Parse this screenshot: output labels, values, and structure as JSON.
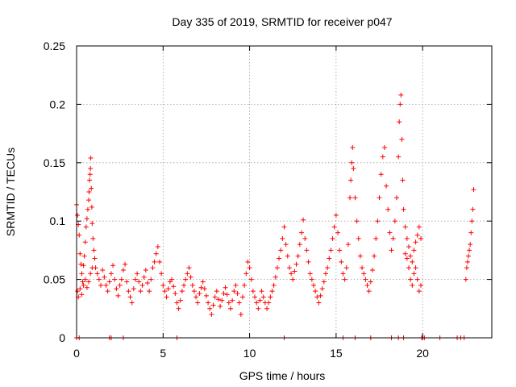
{
  "chart_data": {
    "type": "scatter",
    "title": "Day 335 of 2019, SRMTID for receiver p047",
    "xlabel": "GPS time / hours",
    "ylabel": "SRMTID / TECUs",
    "xlim": [
      0,
      24
    ],
    "ylim": [
      0,
      0.25
    ],
    "x_ticks": [
      0,
      5,
      10,
      15,
      20
    ],
    "x_tick_labels": [
      "0",
      "5",
      "10",
      "15",
      "20"
    ],
    "y_ticks": [
      0,
      0.05,
      0.1,
      0.15,
      0.2,
      0.25
    ],
    "y_tick_labels": [
      "0",
      "0.05",
      "0.1",
      "0.15",
      "0.2",
      "0.25"
    ],
    "grid": true,
    "marker": "+",
    "color": "#ff0000",
    "series": [
      {
        "name": "SRMTID",
        "points": [
          [
            0.0,
            0.114
          ],
          [
            0.05,
            0.105
          ],
          [
            0.1,
            0.097
          ],
          [
            0.15,
            0.088
          ],
          [
            0.2,
            0.072
          ],
          [
            0.25,
            0.063
          ],
          [
            0.3,
            0.055
          ],
          [
            0.35,
            0.048
          ],
          [
            0.4,
            0.062
          ],
          [
            0.45,
            0.07
          ],
          [
            0.5,
            0.082
          ],
          [
            0.55,
            0.095
          ],
          [
            0.6,
            0.102
          ],
          [
            0.65,
            0.11
          ],
          [
            0.7,
            0.118
          ],
          [
            0.72,
            0.125
          ],
          [
            0.75,
            0.135
          ],
          [
            0.78,
            0.14
          ],
          [
            0.8,
            0.145
          ],
          [
            0.82,
            0.154
          ],
          [
            0.85,
            0.128
          ],
          [
            0.88,
            0.112
          ],
          [
            0.9,
            0.098
          ],
          [
            0.95,
            0.085
          ],
          [
            1.0,
            0.075
          ],
          [
            1.05,
            0.068
          ],
          [
            1.1,
            0.06
          ],
          [
            1.2,
            0.055
          ],
          [
            1.3,
            0.05
          ],
          [
            1.4,
            0.045
          ],
          [
            0.05,
            0.04
          ],
          [
            0.1,
            0.035
          ],
          [
            0.2,
            0.042
          ],
          [
            0.3,
            0.037
          ],
          [
            0.4,
            0.045
          ],
          [
            0.5,
            0.05
          ],
          [
            0.6,
            0.043
          ],
          [
            0.7,
            0.048
          ],
          [
            0.8,
            0.055
          ],
          [
            0.9,
            0.06
          ],
          [
            1.5,
            0.058
          ],
          [
            1.6,
            0.052
          ],
          [
            1.7,
            0.045
          ],
          [
            1.8,
            0.04
          ],
          [
            1.9,
            0.048
          ],
          [
            2.0,
            0.055
          ],
          [
            2.1,
            0.062
          ],
          [
            2.2,
            0.05
          ],
          [
            2.3,
            0.042
          ],
          [
            2.4,
            0.036
          ],
          [
            2.5,
            0.045
          ],
          [
            2.6,
            0.05
          ],
          [
            2.7,
            0.058
          ],
          [
            2.8,
            0.063
          ],
          [
            2.9,
            0.048
          ],
          [
            3.0,
            0.04
          ],
          [
            3.1,
            0.035
          ],
          [
            3.2,
            0.03
          ],
          [
            3.3,
            0.042
          ],
          [
            3.4,
            0.05
          ],
          [
            3.5,
            0.055
          ],
          [
            3.6,
            0.048
          ],
          [
            3.7,
            0.04
          ],
          [
            3.8,
            0.045
          ],
          [
            3.9,
            0.052
          ],
          [
            4.0,
            0.058
          ],
          [
            4.1,
            0.047
          ],
          [
            4.2,
            0.04
          ],
          [
            4.3,
            0.05
          ],
          [
            4.4,
            0.06
          ],
          [
            4.5,
            0.065
          ],
          [
            4.6,
            0.072
          ],
          [
            4.7,
            0.078
          ],
          [
            4.8,
            0.065
          ],
          [
            4.9,
            0.055
          ],
          [
            5.0,
            0.045
          ],
          [
            5.1,
            0.04
          ],
          [
            5.2,
            0.035
          ],
          [
            5.3,
            0.042
          ],
          [
            5.4,
            0.048
          ],
          [
            5.5,
            0.05
          ],
          [
            5.6,
            0.044
          ],
          [
            5.7,
            0.038
          ],
          [
            5.8,
            0.03
          ],
          [
            5.9,
            0.025
          ],
          [
            6.0,
            0.032
          ],
          [
            6.1,
            0.04
          ],
          [
            6.2,
            0.045
          ],
          [
            6.3,
            0.05
          ],
          [
            6.4,
            0.055
          ],
          [
            6.5,
            0.06
          ],
          [
            6.6,
            0.052
          ],
          [
            6.7,
            0.045
          ],
          [
            6.8,
            0.04
          ],
          [
            6.9,
            0.035
          ],
          [
            7.0,
            0.03
          ],
          [
            7.1,
            0.038
          ],
          [
            7.2,
            0.043
          ],
          [
            7.3,
            0.048
          ],
          [
            7.4,
            0.042
          ],
          [
            7.5,
            0.036
          ],
          [
            7.6,
            0.03
          ],
          [
            7.7,
            0.025
          ],
          [
            7.8,
            0.02
          ],
          [
            7.9,
            0.028
          ],
          [
            8.0,
            0.035
          ],
          [
            8.1,
            0.04
          ],
          [
            8.2,
            0.033
          ],
          [
            8.3,
            0.027
          ],
          [
            8.4,
            0.032
          ],
          [
            8.5,
            0.038
          ],
          [
            8.6,
            0.043
          ],
          [
            8.7,
            0.037
          ],
          [
            8.8,
            0.03
          ],
          [
            8.9,
            0.025
          ],
          [
            9.0,
            0.032
          ],
          [
            9.1,
            0.04
          ],
          [
            9.2,
            0.045
          ],
          [
            9.3,
            0.038
          ],
          [
            9.4,
            0.03
          ],
          [
            9.5,
            0.02
          ],
          [
            9.6,
            0.035
          ],
          [
            9.7,
            0.045
          ],
          [
            9.8,
            0.055
          ],
          [
            9.9,
            0.065
          ],
          [
            10.0,
            0.06
          ],
          [
            10.1,
            0.05
          ],
          [
            10.2,
            0.04
          ],
          [
            10.3,
            0.035
          ],
          [
            10.4,
            0.03
          ],
          [
            10.5,
            0.025
          ],
          [
            10.6,
            0.032
          ],
          [
            10.7,
            0.04
          ],
          [
            10.8,
            0.035
          ],
          [
            10.9,
            0.03
          ],
          [
            11.0,
            0.025
          ],
          [
            11.1,
            0.03
          ],
          [
            11.2,
            0.035
          ],
          [
            11.3,
            0.04
          ],
          [
            11.4,
            0.045
          ],
          [
            11.5,
            0.052
          ],
          [
            11.6,
            0.06
          ],
          [
            11.7,
            0.068
          ],
          [
            11.8,
            0.075
          ],
          [
            11.9,
            0.085
          ],
          [
            12.0,
            0.095
          ],
          [
            12.1,
            0.08
          ],
          [
            12.2,
            0.07
          ],
          [
            12.3,
            0.06
          ],
          [
            12.4,
            0.055
          ],
          [
            12.5,
            0.05
          ],
          [
            12.6,
            0.057
          ],
          [
            12.7,
            0.063
          ],
          [
            12.8,
            0.07
          ],
          [
            12.9,
            0.08
          ],
          [
            13.0,
            0.09
          ],
          [
            13.1,
            0.101
          ],
          [
            13.2,
            0.085
          ],
          [
            13.3,
            0.075
          ],
          [
            13.4,
            0.065
          ],
          [
            13.5,
            0.055
          ],
          [
            13.6,
            0.05
          ],
          [
            13.7,
            0.045
          ],
          [
            13.8,
            0.04
          ],
          [
            13.9,
            0.035
          ],
          [
            14.0,
            0.03
          ],
          [
            14.1,
            0.036
          ],
          [
            14.2,
            0.042
          ],
          [
            14.3,
            0.048
          ],
          [
            14.4,
            0.055
          ],
          [
            14.5,
            0.06
          ],
          [
            14.6,
            0.068
          ],
          [
            14.7,
            0.075
          ],
          [
            14.8,
            0.085
          ],
          [
            14.9,
            0.095
          ],
          [
            15.0,
            0.105
          ],
          [
            15.1,
            0.09
          ],
          [
            15.2,
            0.075
          ],
          [
            15.3,
            0.065
          ],
          [
            15.4,
            0.055
          ],
          [
            15.5,
            0.05
          ],
          [
            15.6,
            0.06
          ],
          [
            15.7,
            0.08
          ],
          [
            15.8,
            0.12
          ],
          [
            15.85,
            0.135
          ],
          [
            15.9,
            0.15
          ],
          [
            15.95,
            0.163
          ],
          [
            16.0,
            0.145
          ],
          [
            16.1,
            0.12
          ],
          [
            16.2,
            0.1
          ],
          [
            16.3,
            0.085
          ],
          [
            16.4,
            0.07
          ],
          [
            16.5,
            0.06
          ],
          [
            16.6,
            0.055
          ],
          [
            16.7,
            0.05
          ],
          [
            16.8,
            0.045
          ],
          [
            16.9,
            0.04
          ],
          [
            17.0,
            0.048
          ],
          [
            17.1,
            0.058
          ],
          [
            17.2,
            0.07
          ],
          [
            17.3,
            0.085
          ],
          [
            17.4,
            0.1
          ],
          [
            17.5,
            0.12
          ],
          [
            17.6,
            0.14
          ],
          [
            17.7,
            0.155
          ],
          [
            17.8,
            0.163
          ],
          [
            17.9,
            0.13
          ],
          [
            18.0,
            0.11
          ],
          [
            18.1,
            0.09
          ],
          [
            18.2,
            0.075
          ],
          [
            18.3,
            0.085
          ],
          [
            18.4,
            0.1
          ],
          [
            18.5,
            0.12
          ],
          [
            18.6,
            0.155
          ],
          [
            18.65,
            0.185
          ],
          [
            18.7,
            0.2
          ],
          [
            18.75,
            0.208
          ],
          [
            18.8,
            0.17
          ],
          [
            18.85,
            0.135
          ],
          [
            18.9,
            0.11
          ],
          [
            19.0,
            0.095
          ],
          [
            19.1,
            0.085
          ],
          [
            19.2,
            0.078
          ],
          [
            19.3,
            0.07
          ],
          [
            19.4,
            0.065
          ],
          [
            19.5,
            0.075
          ],
          [
            19.6,
            0.082
          ],
          [
            19.7,
            0.088
          ],
          [
            19.8,
            0.095
          ],
          [
            19.9,
            0.085
          ],
          [
            19.6,
            0.06
          ],
          [
            19.7,
            0.05
          ],
          [
            19.8,
            0.04
          ],
          [
            19.9,
            0.045
          ],
          [
            19.5,
            0.055
          ],
          [
            19.4,
            0.045
          ],
          [
            19.3,
            0.05
          ],
          [
            19.2,
            0.06
          ],
          [
            19.1,
            0.068
          ],
          [
            19.0,
            0.072
          ],
          [
            22.5,
            0.05
          ],
          [
            22.55,
            0.06
          ],
          [
            22.6,
            0.065
          ],
          [
            22.65,
            0.07
          ],
          [
            22.7,
            0.075
          ],
          [
            22.75,
            0.08
          ],
          [
            22.8,
            0.09
          ],
          [
            22.85,
            0.1
          ],
          [
            22.9,
            0.11
          ],
          [
            22.95,
            0.127
          ],
          [
            0.0,
            0.0
          ],
          [
            0.15,
            0.0
          ],
          [
            1.9,
            0.0
          ],
          [
            2.0,
            0.0
          ],
          [
            2.7,
            0.0
          ],
          [
            5.8,
            0.0
          ],
          [
            12.0,
            0.0
          ],
          [
            15.4,
            0.0
          ],
          [
            16.1,
            0.0
          ],
          [
            17.0,
            0.0
          ],
          [
            18.2,
            0.0
          ],
          [
            18.6,
            0.0
          ],
          [
            18.9,
            0.0
          ],
          [
            19.95,
            0.0
          ],
          [
            20.0,
            0.0
          ],
          [
            20.1,
            0.0
          ],
          [
            21.0,
            0.0
          ],
          [
            22.0,
            0.0
          ],
          [
            22.2,
            0.0
          ],
          [
            22.4,
            0.0
          ]
        ]
      }
    ]
  }
}
